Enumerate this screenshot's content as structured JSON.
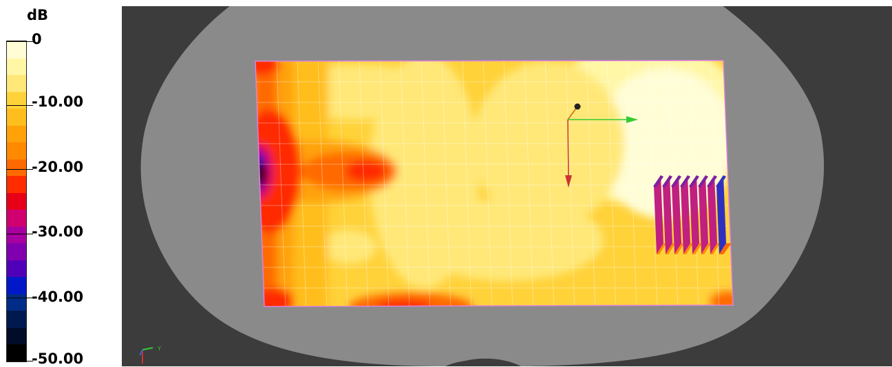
{
  "legend": {
    "title": "dB",
    "ticks": [
      "0",
      "-10.00",
      "-20.00",
      "-30.00",
      "-40.00",
      "-50.00"
    ],
    "colors": [
      "#fffdd6",
      "#fff7a6",
      "#ffe878",
      "#ffd23a",
      "#ffbe1e",
      "#ffa20a",
      "#ff8a00",
      "#ff6a00",
      "#ff2c00",
      "#e80018",
      "#d00070",
      "#a800a0",
      "#8000b0",
      "#5000b8",
      "#0018c8",
      "#002c88",
      "#001a50",
      "#000c28",
      "#000000"
    ]
  },
  "viewport": {
    "background_color": "#3c3c3c",
    "body_color": "#8a8a8a",
    "axes": {
      "x_color": "#33cc33",
      "y_color": "#cc3333"
    }
  }
}
